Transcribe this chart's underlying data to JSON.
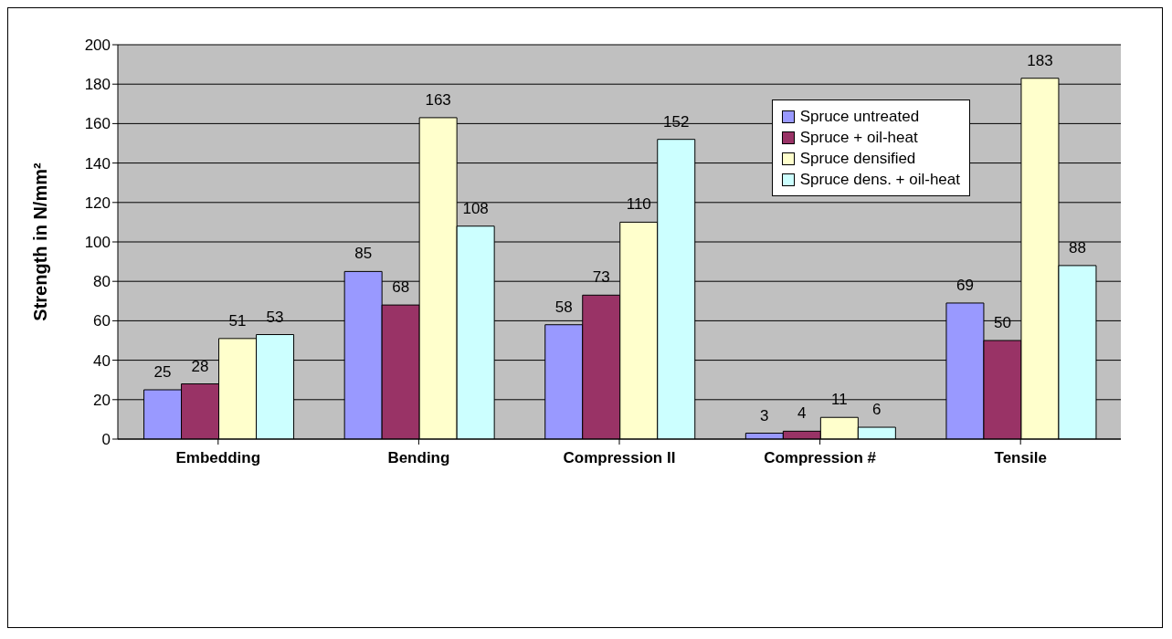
{
  "chart_data": {
    "type": "bar",
    "ylabel": "Strength in N/mm²",
    "categories": [
      "Embedding",
      "Bending",
      "Compression II",
      "Compression #",
      "Tensile"
    ],
    "series": [
      {
        "name": "Spruce untreated",
        "color": "#9999ff",
        "values": [
          25,
          85,
          58,
          3,
          69
        ]
      },
      {
        "name": "Spruce + oil-heat",
        "color": "#993366",
        "values": [
          28,
          68,
          73,
          4,
          50
        ]
      },
      {
        "name": "Spruce densified",
        "color": "#ffffcc",
        "values": [
          51,
          163,
          110,
          11,
          183
        ]
      },
      {
        "name": "Spruce dens. + oil-heat",
        "color": "#ccffff",
        "values": [
          53,
          108,
          152,
          6,
          88
        ]
      }
    ],
    "ylim": [
      0,
      200
    ],
    "yticks": [
      0,
      20,
      40,
      60,
      80,
      100,
      120,
      140,
      160,
      180,
      200
    ],
    "grid": "y",
    "legend": "top right",
    "data_labels": true
  }
}
